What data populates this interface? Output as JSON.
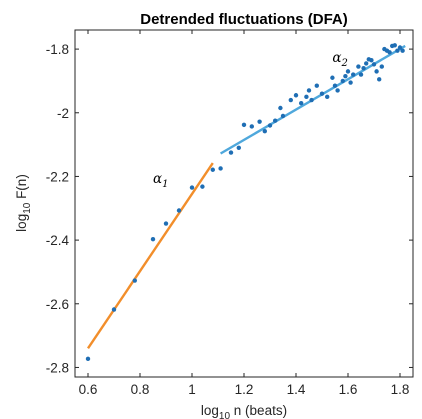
{
  "chart_data": {
    "type": "scatter",
    "title": "Detrended fluctuations (DFA)",
    "xlabel": {
      "prefix": "log",
      "sub": "10",
      "suffix": " n (beats)"
    },
    "ylabel": {
      "prefix": "log",
      "sub": "10",
      "suffix": " F(n)"
    },
    "xlim": [
      0.55,
      1.85
    ],
    "ylim": [
      -2.83,
      -1.74
    ],
    "xticks": [
      0.6,
      0.8,
      1.0,
      1.2,
      1.4,
      1.6,
      1.8
    ],
    "xtick_labels": [
      "0.6",
      "0.8",
      "1",
      "1.2",
      "1.4",
      "1.6",
      "1.8"
    ],
    "yticks": [
      -2.8,
      -2.6,
      -2.4,
      -2.2,
      -2.0,
      -1.8
    ],
    "ytick_labels": [
      "-2.8",
      "-2.6",
      "-2.4",
      "-2.2",
      "-2",
      "-1.8"
    ],
    "grid": false,
    "annotations": [
      {
        "symbol": "α",
        "sub": "1",
        "x": 0.85,
        "y": -2.22
      },
      {
        "symbol": "α",
        "sub": "2",
        "x": 1.54,
        "y": -1.84
      }
    ],
    "colors": {
      "points": "#1f6eb4",
      "fit1": "#f28e2b",
      "fit2": "#4fa8dc"
    },
    "series": [
      {
        "values": [
          [
            0.6,
            -2.773
          ],
          [
            0.7,
            -2.618
          ],
          [
            0.78,
            -2.527
          ],
          [
            0.85,
            -2.397
          ],
          [
            0.9,
            -2.348
          ],
          [
            0.95,
            -2.307
          ],
          [
            1.0,
            -2.235
          ],
          [
            1.04,
            -2.232
          ],
          [
            1.08,
            -2.179
          ],
          [
            1.11,
            -2.175
          ],
          [
            1.15,
            -2.125
          ],
          [
            1.18,
            -2.11
          ],
          [
            1.2,
            -2.038
          ],
          [
            1.23,
            -2.043
          ],
          [
            1.26,
            -2.028
          ],
          [
            1.28,
            -2.058
          ],
          [
            1.3,
            -2.04
          ],
          [
            1.32,
            -2.025
          ],
          [
            1.34,
            -1.985
          ],
          [
            1.35,
            -2.01
          ],
          [
            1.38,
            -1.96
          ],
          [
            1.4,
            -1.945
          ],
          [
            1.42,
            -1.97
          ],
          [
            1.44,
            -1.95
          ],
          [
            1.45,
            -1.93
          ],
          [
            1.46,
            -1.96
          ],
          [
            1.48,
            -1.915
          ],
          [
            1.5,
            -1.94
          ],
          [
            1.52,
            -1.95
          ],
          [
            1.54,
            -1.89
          ],
          [
            1.55,
            -1.915
          ],
          [
            1.56,
            -1.93
          ],
          [
            1.58,
            -1.9
          ],
          [
            1.59,
            -1.885
          ],
          [
            1.6,
            -1.87
          ],
          [
            1.61,
            -1.905
          ],
          [
            1.62,
            -1.88
          ],
          [
            1.64,
            -1.855
          ],
          [
            1.65,
            -1.88
          ],
          [
            1.66,
            -1.86
          ],
          [
            1.67,
            -1.845
          ],
          [
            1.68,
            -1.832
          ],
          [
            1.69,
            -1.835
          ],
          [
            1.7,
            -1.848
          ],
          [
            1.71,
            -1.87
          ],
          [
            1.72,
            -1.895
          ],
          [
            1.73,
            -1.855
          ],
          [
            1.74,
            -1.8
          ],
          [
            1.75,
            -1.805
          ],
          [
            1.76,
            -1.81
          ],
          [
            1.77,
            -1.79
          ],
          [
            1.78,
            -1.788
          ],
          [
            1.79,
            -1.805
          ],
          [
            1.8,
            -1.795
          ],
          [
            1.81,
            -1.805
          ]
        ]
      }
    ],
    "fit_lines": [
      {
        "label": "α1",
        "x": [
          0.6,
          1.08
        ],
        "y": [
          -2.74,
          -2.158
        ]
      },
      {
        "label": "α2",
        "x": [
          1.11,
          1.82
        ],
        "y": [
          -2.128,
          -1.79
        ]
      }
    ]
  }
}
